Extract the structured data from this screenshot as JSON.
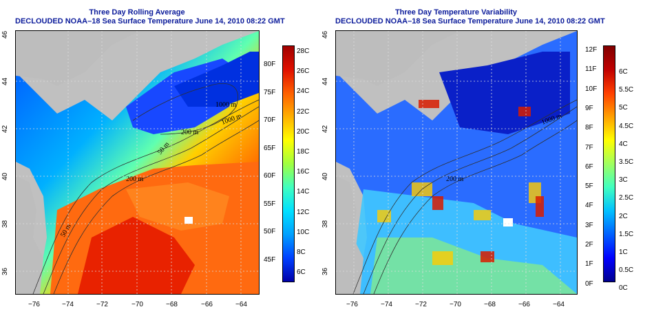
{
  "left": {
    "title_line1": "Three Day Rolling Average",
    "title_line2": "DECLOUDED NOAA–18 Sea Surface Temperature June 14, 2010 08:22 GMT",
    "contour_labels": [
      "50 m",
      "200 m",
      "1000 m",
      "50 m",
      "200 m",
      "1000 m"
    ],
    "colorbar": {
      "celsius": [
        "28C",
        "26C",
        "24C",
        "22C",
        "20C",
        "18C",
        "16C",
        "14C",
        "12C",
        "10C",
        "8C",
        "6C"
      ],
      "fahrenheit": [
        "80F",
        "75F",
        "70F",
        "65F",
        "60F",
        "55F",
        "50F",
        "45F"
      ],
      "colors": [
        "#0000aa",
        "#0040ff",
        "#00a0ff",
        "#00e0ff",
        "#40ffc0",
        "#a0ff40",
        "#ffff00",
        "#ffb000",
        "#ff6000",
        "#e01000",
        "#a00000"
      ]
    }
  },
  "right": {
    "title_line1": "Three Day Temperature Variability",
    "title_line2": "DECLOUDED NOAA–18 Sea Surface Temperature June 14, 2010 08:22 GMT",
    "contour_labels": [
      "200 m",
      "1000 m"
    ],
    "colorbar": {
      "celsius": [
        "6C",
        "5.5C",
        "5C",
        "4.5C",
        "4C",
        "3.5C",
        "3C",
        "2.5C",
        "2C",
        "1.5C",
        "1C",
        "0.5C",
        "0C"
      ],
      "fahrenheit": [
        "12F",
        "11F",
        "10F",
        "9F",
        "8F",
        "7F",
        "6F",
        "5F",
        "4F",
        "3F",
        "2F",
        "1F",
        "0F"
      ],
      "colors": [
        "#00008f",
        "#0000ff",
        "#0060ff",
        "#00c0ff",
        "#40ffc0",
        "#a0ff60",
        "#ffff00",
        "#ffa000",
        "#ff4000",
        "#c00000",
        "#800000"
      ]
    }
  },
  "axes": {
    "lon_ticks": [
      "−76",
      "−74",
      "−72",
      "−70",
      "−68",
      "−66",
      "−64"
    ],
    "lat_ticks": [
      "36",
      "38",
      "40",
      "42",
      "44",
      "46"
    ]
  }
}
